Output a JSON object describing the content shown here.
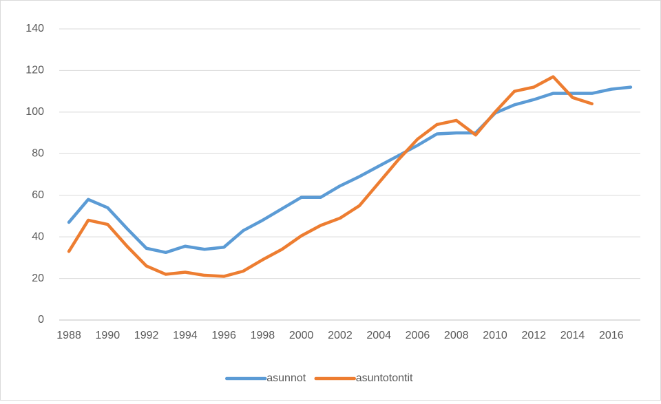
{
  "chart_data": {
    "type": "line",
    "x": [
      1988,
      1989,
      1990,
      1991,
      1992,
      1993,
      1994,
      1995,
      1996,
      1997,
      1998,
      1999,
      2000,
      2001,
      2002,
      2003,
      2004,
      2005,
      2006,
      2007,
      2008,
      2009,
      2010,
      2011,
      2012,
      2013,
      2014,
      2015,
      2016,
      2017
    ],
    "series": [
      {
        "name": "asunnot",
        "color": "#5b9bd5",
        "values": [
          47,
          58,
          54,
          44,
          34.5,
          32.5,
          35.5,
          34,
          35,
          43,
          48,
          53.5,
          59,
          59,
          64.5,
          69,
          74,
          79,
          84,
          89.5,
          90,
          90,
          99.5,
          103.5,
          106,
          109,
          109,
          109,
          111,
          112
        ]
      },
      {
        "name": "asuntotontit",
        "color": "#ed7d31",
        "values": [
          33,
          48,
          46,
          35.5,
          26,
          22,
          23,
          21.5,
          21,
          23.5,
          29,
          34,
          40.5,
          45.5,
          49,
          55,
          66,
          77,
          87,
          94,
          96,
          89,
          100,
          110,
          112,
          117,
          107,
          104,
          null,
          null
        ]
      }
    ],
    "xlim": [
      1987.5,
      2017.5
    ],
    "xticks": [
      1988,
      1990,
      1992,
      1994,
      1996,
      1998,
      2000,
      2002,
      2004,
      2006,
      2008,
      2010,
      2012,
      2014,
      2016
    ],
    "ylim": [
      0,
      140
    ],
    "yticks": [
      0,
      20,
      40,
      60,
      80,
      100,
      120,
      140
    ],
    "grid": true,
    "legend": "bottom"
  }
}
